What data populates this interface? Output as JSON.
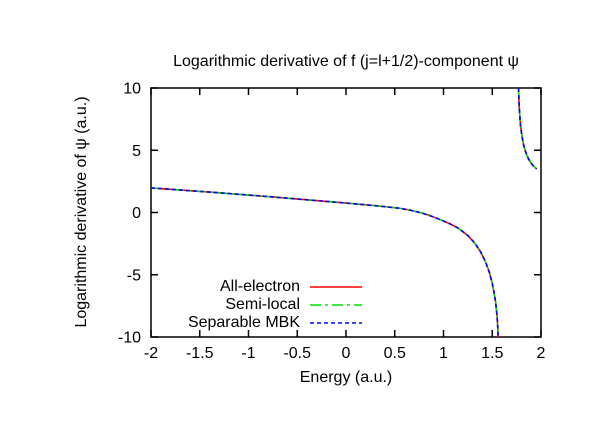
{
  "chart_data": {
    "type": "line",
    "title": "Logarithmic derivative of f (j=l+1/2)-component ψ",
    "xlabel": "Energy (a.u.)",
    "ylabel": "Logarithmic derivative of ψ (a.u.)",
    "xlim": [
      -2,
      2
    ],
    "ylim": [
      -10,
      10
    ],
    "xticks": [
      {
        "v": -2,
        "label": "-2"
      },
      {
        "v": -1.5,
        "label": "-1.5"
      },
      {
        "v": -1,
        "label": "-1"
      },
      {
        "v": -0.5,
        "label": "-0.5"
      },
      {
        "v": 0,
        "label": "0"
      },
      {
        "v": 0.5,
        "label": "0.5"
      },
      {
        "v": 1,
        "label": "1"
      },
      {
        "v": 1.5,
        "label": "1.5"
      },
      {
        "v": 2,
        "label": "2"
      }
    ],
    "yticks": [
      {
        "v": -10,
        "label": "-10"
      },
      {
        "v": -5,
        "label": "-5"
      },
      {
        "v": 0,
        "label": "0"
      },
      {
        "v": 5,
        "label": "5"
      },
      {
        "v": 10,
        "label": "10"
      }
    ],
    "grid": false,
    "legend_position": "inside bottom-left",
    "background_color": "#ffffff",
    "axis_color": "#000000",
    "series": [
      {
        "name": "All-electron",
        "color": "#ff0000",
        "dash": "solid"
      },
      {
        "name": "Semi-local",
        "color": "#00e000",
        "dash": "dash-dot"
      },
      {
        "name": "Separable MBK",
        "color": "#0000ff",
        "dash": "dashed"
      }
    ],
    "series_note": "All three curves are visually coincident; shared branch geometry below.",
    "branches": {
      "main": [
        [
          -2.0,
          1.97
        ],
        [
          -1.8,
          1.86
        ],
        [
          -1.6,
          1.75
        ],
        [
          -1.4,
          1.64
        ],
        [
          -1.2,
          1.52
        ],
        [
          -1.0,
          1.4
        ],
        [
          -0.8,
          1.28
        ],
        [
          -0.6,
          1.15
        ],
        [
          -0.4,
          1.02
        ],
        [
          -0.2,
          0.89
        ],
        [
          0.0,
          0.76
        ],
        [
          0.2,
          0.62
        ],
        [
          0.4,
          0.47
        ],
        [
          0.55,
          0.34
        ],
        [
          0.65,
          0.2
        ],
        [
          0.76,
          0.0
        ],
        [
          0.85,
          -0.22
        ],
        [
          0.95,
          -0.52
        ],
        [
          1.05,
          -0.85
        ],
        [
          1.15,
          -1.25
        ],
        [
          1.25,
          -1.85
        ],
        [
          1.32,
          -2.45
        ],
        [
          1.38,
          -3.15
        ],
        [
          1.43,
          -3.95
        ],
        [
          1.47,
          -4.8
        ],
        [
          1.5,
          -5.7
        ],
        [
          1.52,
          -6.5
        ],
        [
          1.535,
          -7.25
        ],
        [
          1.548,
          -8.2
        ],
        [
          1.556,
          -9.1
        ],
        [
          1.56,
          -10.0
        ]
      ],
      "upper": [
        [
          1.77,
          10.0
        ],
        [
          1.772,
          9.4
        ],
        [
          1.775,
          8.8
        ],
        [
          1.779,
          8.2
        ],
        [
          1.784,
          7.6
        ],
        [
          1.79,
          7.0
        ],
        [
          1.798,
          6.5
        ],
        [
          1.808,
          6.0
        ],
        [
          1.82,
          5.5
        ],
        [
          1.835,
          5.05
        ],
        [
          1.852,
          4.65
        ],
        [
          1.872,
          4.3
        ],
        [
          1.895,
          4.0
        ],
        [
          1.92,
          3.75
        ],
        [
          1.945,
          3.58
        ],
        [
          1.955,
          3.5
        ]
      ]
    }
  }
}
